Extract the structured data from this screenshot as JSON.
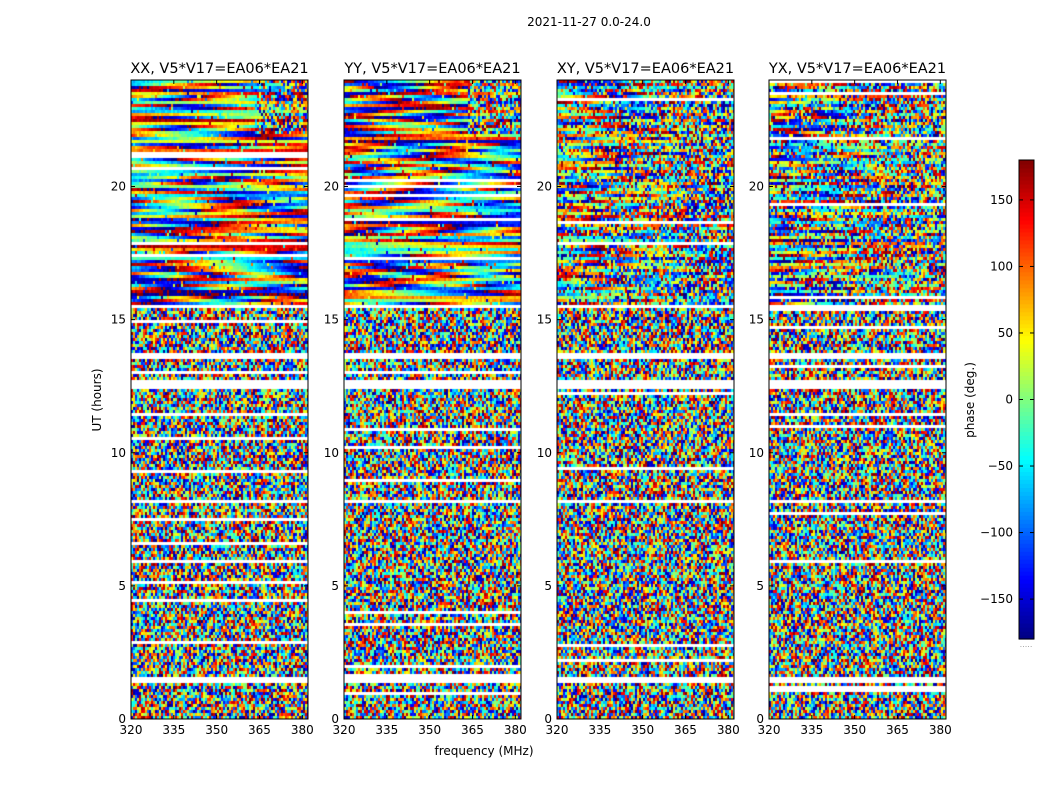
{
  "figure_title": "2021-11-27 0.0-24.0",
  "colorbar": {
    "label": "phase (deg.)",
    "ticks": [
      150,
      100,
      50,
      0,
      -50,
      -100,
      -150
    ],
    "tick_labels": [
      "150",
      "100",
      "50",
      "0",
      "−50",
      "−100",
      "−150"
    ],
    "range": [
      -180,
      180
    ],
    "colormap": "jet",
    "footer": "....."
  },
  "chart_data": {
    "type": "heatmap",
    "suptitle": "2021-11-27 0.0-24.0",
    "xlabel": "frequency (MHz)",
    "ylabel": "UT (hours)",
    "xlim": [
      320,
      382
    ],
    "ylim": [
      0,
      24
    ],
    "x_ticks": [
      320,
      335,
      350,
      365,
      380
    ],
    "x_tick_labels": [
      "320",
      "335",
      "350",
      "365",
      "380"
    ],
    "y_ticks": [
      0,
      5,
      10,
      15,
      20
    ],
    "y_tick_labels": [
      "0",
      "5",
      "10",
      "15",
      "20"
    ],
    "z_label": "phase (deg.)",
    "z_range": [
      -180,
      180
    ],
    "panels": [
      {
        "title": "XX, V5*V17=EA06*EA21"
      },
      {
        "title": "YY, V5*V17=EA06*EA21"
      },
      {
        "title": "XY, V5*V17=EA06*EA21"
      },
      {
        "title": "YX, V5*V17=EA06*EA21"
      }
    ],
    "gap_rows_UT": [
      [
        1.3,
        1.6
      ],
      [
        12.45,
        12.7
      ],
      [
        13.5,
        13.7
      ],
      [
        8.1,
        8.2
      ],
      [
        15.4,
        15.55
      ]
    ],
    "coherent_interval_UT": [
      15.6,
      24
    ],
    "noise_interval_UT": [
      0,
      15.6
    ]
  }
}
